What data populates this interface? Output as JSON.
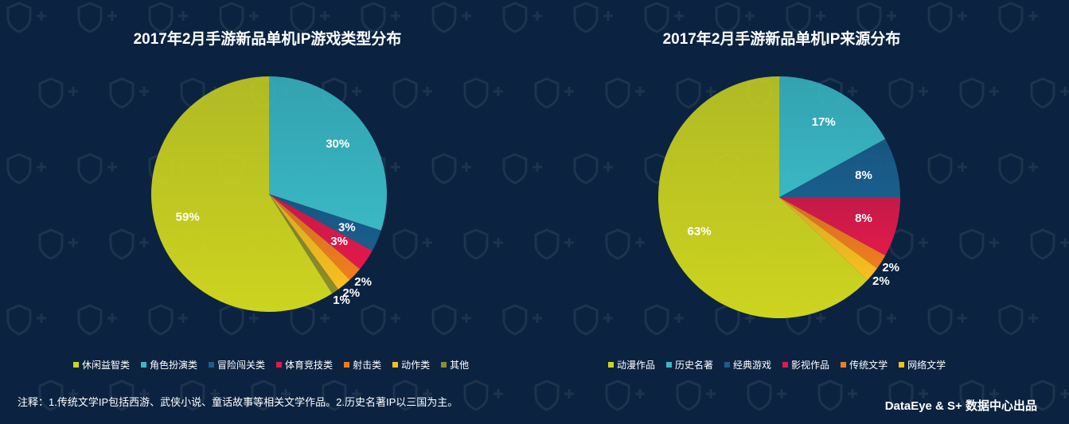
{
  "chart_data": [
    {
      "type": "pie",
      "title": "2017年2月手游新品单机IP游戏类型分布",
      "slices": [
        {
          "name": "休闲益智类",
          "value": 59,
          "label": "59%",
          "color": "#cdd41f"
        },
        {
          "name": "角色扮演类",
          "value": 30,
          "label": "30%",
          "color": "#3ab8c4"
        },
        {
          "name": "冒险闯关类",
          "value": 3,
          "label": "3%",
          "color": "#1a5e8c"
        },
        {
          "name": "体育竞技类",
          "value": 3,
          "label": "3%",
          "color": "#e3194a"
        },
        {
          "name": "射击类",
          "value": 2,
          "label": "2%",
          "color": "#f07d1e"
        },
        {
          "name": "动作类",
          "value": 2,
          "label": "2%",
          "color": "#f9bf1f"
        },
        {
          "name": "其他",
          "value": 1,
          "label": "1%",
          "color": "#8c8e2a"
        }
      ],
      "legend_position": "bottom"
    },
    {
      "type": "pie",
      "title": "2017年2月手游新品单机IP来源分布",
      "slices": [
        {
          "name": "动漫作品",
          "value": 63,
          "label": "63%",
          "color": "#cdd41f"
        },
        {
          "name": "历史名著",
          "value": 17,
          "label": "17%",
          "color": "#3ab8c4"
        },
        {
          "name": "经典游戏",
          "value": 8,
          "label": "8%",
          "color": "#1a5e8c"
        },
        {
          "name": "影视作品",
          "value": 8,
          "label": "8%",
          "color": "#e3194a"
        },
        {
          "name": "传统文学",
          "value": 2,
          "label": "2%",
          "color": "#f07d1e"
        },
        {
          "name": "网络文学",
          "value": 2,
          "label": "2%",
          "color": "#f9bf1f"
        }
      ],
      "legend_position": "bottom"
    }
  ],
  "footnote": "注释：1.传统文学IP包括西游、武侠小说、童话故事等相关文学作品。2.历史名著IP以三国为主。",
  "credit": "DataEye & S+ 数据中心出品"
}
